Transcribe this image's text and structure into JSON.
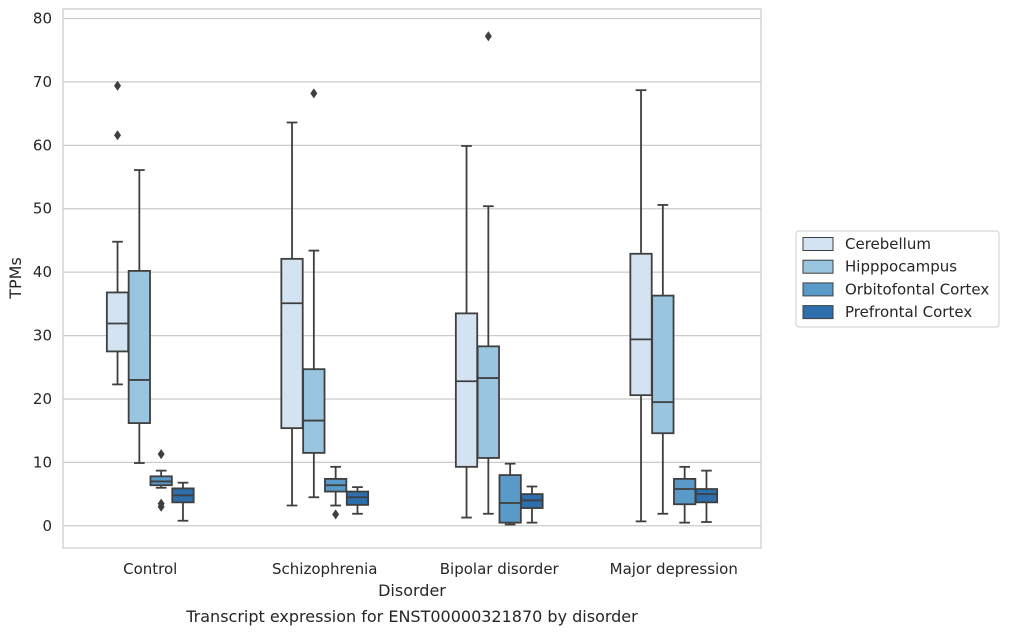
{
  "caption": "Transcript expression for ENST00000321870 by disorder",
  "chart_data": {
    "type": "box",
    "title": "",
    "xlabel": "Disorder",
    "ylabel": "TPMs",
    "ylim": [
      -3.5,
      81.5
    ],
    "yticks": [
      0,
      10,
      20,
      30,
      40,
      50,
      60,
      70,
      80
    ],
    "grid": "horizontal",
    "legend_position": "right",
    "categories": [
      "Control",
      "Schizophrenia",
      "Bipolar disorder",
      "Major depression"
    ],
    "series": [
      {
        "name": "Cerebellum",
        "color": "#d4e3f1",
        "boxes": [
          {
            "min": 22.3,
            "q1": 27.5,
            "median": 31.9,
            "q3": 36.8,
            "max": 44.8,
            "outliers": [
              61.6,
              69.4
            ]
          },
          {
            "min": 3.2,
            "q1": 15.4,
            "median": 35.1,
            "q3": 42.1,
            "max": 63.6,
            "outliers": []
          },
          {
            "min": 1.3,
            "q1": 9.3,
            "median": 22.8,
            "q3": 33.5,
            "max": 59.9,
            "outliers": []
          },
          {
            "min": 0.7,
            "q1": 20.6,
            "median": 29.4,
            "q3": 42.9,
            "max": 68.7,
            "outliers": []
          }
        ]
      },
      {
        "name": "Hipppocampus",
        "color": "#9ac5e0",
        "boxes": [
          {
            "min": 9.9,
            "q1": 16.2,
            "median": 23.0,
            "q3": 40.2,
            "max": 56.1,
            "outliers": []
          },
          {
            "min": 4.5,
            "q1": 11.5,
            "median": 16.6,
            "q3": 24.7,
            "max": 43.4,
            "outliers": [
              68.2
            ]
          },
          {
            "min": 1.9,
            "q1": 10.7,
            "median": 23.3,
            "q3": 28.3,
            "max": 50.4,
            "outliers": [
              77.2
            ]
          },
          {
            "min": 1.9,
            "q1": 14.6,
            "median": 19.5,
            "q3": 36.3,
            "max": 50.6,
            "outliers": []
          }
        ]
      },
      {
        "name": "Orbitofontal Cortex",
        "color": "#5a9ac9",
        "boxes": [
          {
            "min": 6.0,
            "q1": 6.4,
            "median": 7.0,
            "q3": 7.8,
            "max": 8.7,
            "outliers": [
              11.3,
              3.5,
              3.0
            ]
          },
          {
            "min": 3.2,
            "q1": 5.4,
            "median": 6.4,
            "q3": 7.4,
            "max": 9.3,
            "outliers": [
              1.8
            ]
          },
          {
            "min": 0.2,
            "q1": 0.5,
            "median": 3.6,
            "q3": 8.0,
            "max": 9.8,
            "outliers": []
          },
          {
            "min": 0.5,
            "q1": 3.4,
            "median": 5.8,
            "q3": 7.4,
            "max": 9.3,
            "outliers": []
          }
        ]
      },
      {
        "name": "Prefrontal Cortex",
        "color": "#2d6ead",
        "boxes": [
          {
            "min": 0.8,
            "q1": 3.7,
            "median": 4.8,
            "q3": 5.9,
            "max": 6.8,
            "outliers": []
          },
          {
            "min": 1.9,
            "q1": 3.3,
            "median": 4.5,
            "q3": 5.4,
            "max": 6.1,
            "outliers": []
          },
          {
            "min": 0.5,
            "q1": 2.8,
            "median": 4.0,
            "q3": 5.0,
            "max": 6.2,
            "outliers": []
          },
          {
            "min": 0.6,
            "q1": 3.7,
            "median": 5.0,
            "q3": 5.8,
            "max": 8.7,
            "outliers": []
          }
        ]
      }
    ],
    "style": {
      "grid_color": "#cccccc",
      "frame_color": "#cccccc",
      "line_color": "#3f3f3f",
      "text_color": "#262626"
    }
  }
}
